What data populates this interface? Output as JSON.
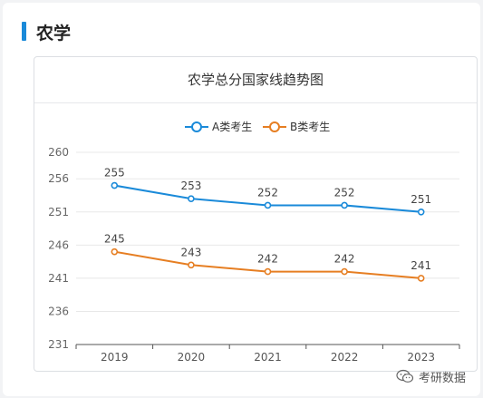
{
  "section": {
    "title": "农学"
  },
  "chart_data": {
    "type": "line",
    "title": "农学总分国家线趋势图",
    "categories": [
      "2019",
      "2020",
      "2021",
      "2022",
      "2023"
    ],
    "yticks": [
      231,
      236,
      241,
      246,
      251,
      256,
      260
    ],
    "ylim": [
      231,
      260
    ],
    "grid": true,
    "legend": "top-center",
    "series": [
      {
        "name": "A类考生",
        "color": "#1a8ad9",
        "values": [
          255,
          253,
          252,
          252,
          251
        ]
      },
      {
        "name": "B类考生",
        "color": "#e67e22",
        "values": [
          245,
          243,
          242,
          242,
          241
        ]
      }
    ]
  },
  "watermark": {
    "text": "考研数据",
    "icon": "wechat-icon"
  }
}
